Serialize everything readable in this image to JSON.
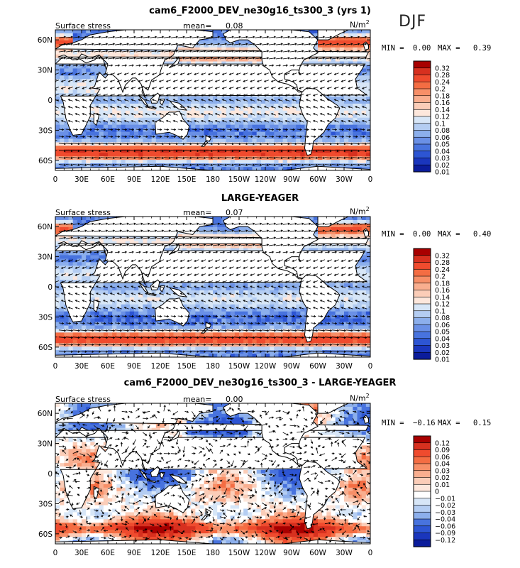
{
  "season_label": "DJF",
  "chart_data": [
    {
      "type": "heatmap",
      "title": "cam6_F2000_DEV_ne30g16_ts300_3 (yrs 1)",
      "left_label": "Surface stress",
      "mean_label": "mean=",
      "mean_value": "0.08",
      "units_base": "N/m",
      "units_sup": "2",
      "min_label": "MIN =",
      "min_value": "0.00",
      "max_label": "MAX =",
      "max_value": "0.39",
      "x_ticks": [
        "0",
        "30E",
        "60E",
        "90E",
        "120E",
        "150E",
        "180",
        "150W",
        "120W",
        "90W",
        "60W",
        "30W",
        "0"
      ],
      "y_ticks": [
        "60N",
        "30N",
        "0",
        "30S",
        "60S"
      ],
      "colorbar_labels": [
        "0.32",
        "0.28",
        "0.24",
        "0.2",
        "0.18",
        "0.16",
        "0.14",
        "0.12",
        "0.1",
        "0.08",
        "0.06",
        "0.05",
        "0.04",
        "0.03",
        "0.02",
        "0.01"
      ],
      "colorbar_colors": [
        "#a80000",
        "#d7301f",
        "#ef4b2e",
        "#f46d43",
        "#f78f68",
        "#f9ae8f",
        "#fbcdb8",
        "#fde7dc",
        "#d7e6f7",
        "#b4cdf2",
        "#8cafec",
        "#6a90e6",
        "#4873de",
        "#2d55d3",
        "#1a36bd",
        "#0b1c9b"
      ]
    },
    {
      "type": "heatmap",
      "title": "LARGE-YEAGER",
      "left_label": "Surface stress",
      "mean_label": "mean=",
      "mean_value": "0.07",
      "units_base": "N/m",
      "units_sup": "2",
      "min_label": "MIN =",
      "min_value": "0.00",
      "max_label": "MAX =",
      "max_value": "0.40",
      "x_ticks": [
        "0",
        "30E",
        "60E",
        "90E",
        "120E",
        "150E",
        "180",
        "150W",
        "120W",
        "90W",
        "60W",
        "30W",
        "0"
      ],
      "y_ticks": [
        "60N",
        "30N",
        "0",
        "30S",
        "60S"
      ],
      "colorbar_labels": [
        "0.32",
        "0.28",
        "0.24",
        "0.2",
        "0.18",
        "0.16",
        "0.14",
        "0.12",
        "0.1",
        "0.08",
        "0.06",
        "0.05",
        "0.04",
        "0.03",
        "0.02",
        "0.01"
      ],
      "colorbar_colors": [
        "#a80000",
        "#d7301f",
        "#ef4b2e",
        "#f46d43",
        "#f78f68",
        "#f9ae8f",
        "#fbcdb8",
        "#fde7dc",
        "#d7e6f7",
        "#b4cdf2",
        "#8cafec",
        "#6a90e6",
        "#4873de",
        "#2d55d3",
        "#1a36bd",
        "#0b1c9b"
      ]
    },
    {
      "type": "heatmap",
      "title": "cam6_F2000_DEV_ne30g16_ts300_3 - LARGE-YEAGER",
      "left_label": "Surface stress",
      "mean_label": "mean=",
      "mean_value": "0.00",
      "units_base": "N/m",
      "units_sup": "2",
      "min_label": "MIN =",
      "min_value": "−0.16",
      "max_label": "MAX =",
      "max_value": "0.15",
      "x_ticks": [
        "0",
        "30E",
        "60E",
        "90E",
        "120E",
        "150E",
        "180",
        "150W",
        "120W",
        "90W",
        "60W",
        "30W",
        "0"
      ],
      "y_ticks": [
        "60N",
        "30N",
        "0",
        "30S",
        "60S"
      ],
      "colorbar_labels": [
        "0.12",
        "0.09",
        "0.06",
        "0.04",
        "0.03",
        "0.02",
        "0.01",
        "0",
        "−0.01",
        "−0.02",
        "−0.03",
        "−0.04",
        "−0.06",
        "−0.09",
        "−0.12"
      ],
      "colorbar_colors": [
        "#a80000",
        "#d7301f",
        "#ef4b2e",
        "#f46d43",
        "#f78f68",
        "#f9ae8f",
        "#fbcdb8",
        "#fde7dc",
        "#ffffff",
        "#d7e6f7",
        "#b4cdf2",
        "#8cafec",
        "#4873de",
        "#2d55d3",
        "#1a36bd",
        "#0b1c9b"
      ]
    }
  ]
}
